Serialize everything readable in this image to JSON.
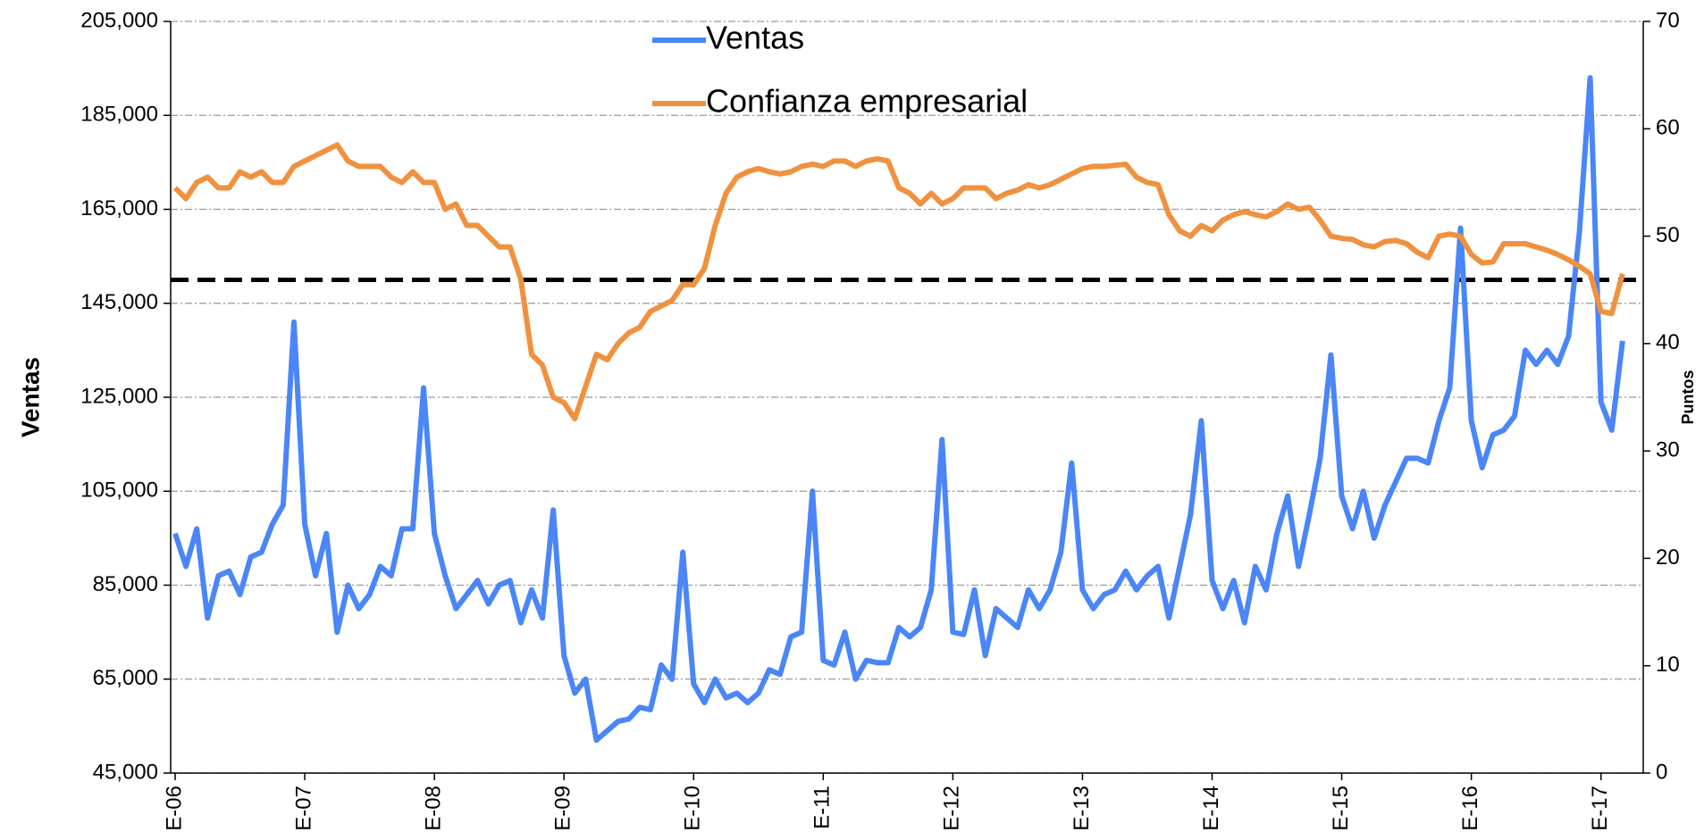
{
  "chart_data": {
    "type": "line",
    "y_label": "Ventas",
    "y2_label": "Puntos",
    "categories": [
      "E-06",
      null,
      null,
      null,
      null,
      null,
      null,
      null,
      null,
      null,
      null,
      null,
      "E-07",
      null,
      null,
      null,
      null,
      null,
      null,
      null,
      null,
      null,
      null,
      null,
      "E-08",
      null,
      null,
      null,
      null,
      null,
      null,
      null,
      null,
      null,
      null,
      null,
      "E-09",
      null,
      null,
      null,
      null,
      null,
      null,
      null,
      null,
      null,
      null,
      null,
      "E-10",
      null,
      null,
      null,
      null,
      null,
      null,
      null,
      null,
      null,
      null,
      null,
      "E-11",
      null,
      null,
      null,
      null,
      null,
      null,
      null,
      null,
      null,
      null,
      null,
      "E-12",
      null,
      null,
      null,
      null,
      null,
      null,
      null,
      null,
      null,
      null,
      null,
      "E-13",
      null,
      null,
      null,
      null,
      null,
      null,
      null,
      null,
      null,
      null,
      null,
      "E-14",
      null,
      null,
      null,
      null,
      null,
      null,
      null,
      null,
      null,
      null,
      null,
      "E-15",
      null,
      null,
      null,
      null,
      null,
      null,
      null,
      null,
      null,
      null,
      null,
      "E-16",
      null,
      null,
      null,
      null,
      null,
      null,
      null,
      null,
      null,
      null,
      null,
      "E-17",
      null,
      null
    ],
    "series": [
      {
        "name": "Ventas",
        "color": "#4a86f7",
        "axis": "y",
        "values": [
          96000,
          89000,
          97000,
          78000,
          87000,
          88000,
          83000,
          91000,
          92000,
          98000,
          102000,
          141000,
          98000,
          87000,
          96000,
          75000,
          85000,
          80000,
          83000,
          89000,
          87000,
          97000,
          97000,
          127000,
          96000,
          87000,
          80000,
          83000,
          86000,
          81000,
          85000,
          86000,
          77000,
          84000,
          78000,
          101000,
          70000,
          62000,
          65000,
          52000,
          54000,
          56000,
          56500,
          59000,
          58500,
          68000,
          65000,
          92000,
          64000,
          60000,
          65000,
          61000,
          62000,
          60000,
          62000,
          67000,
          66000,
          74000,
          75000,
          105000,
          69000,
          68000,
          75000,
          65000,
          69000,
          68500,
          68500,
          76000,
          74000,
          76000,
          84000,
          116000,
          75000,
          74500,
          84000,
          70000,
          80000,
          78000,
          76000,
          84000,
          80000,
          84000,
          92000,
          111000,
          84000,
          80000,
          83000,
          84000,
          88000,
          84000,
          87000,
          89000,
          78000,
          89000,
          100000,
          120000,
          86000,
          80000,
          86000,
          77000,
          89000,
          84000,
          96000,
          104000,
          89000,
          100000,
          112000,
          134000,
          104000,
          97000,
          105000,
          95000,
          102000,
          107000,
          112000,
          112000,
          111000,
          120000,
          127000,
          161000,
          120000,
          110000,
          117000,
          118000,
          121000,
          135000,
          132000,
          135000,
          132000,
          138000,
          160000,
          193000,
          124000,
          118000,
          137000
        ]
      },
      {
        "name": "Confianza empresarial",
        "color": "#f0913f",
        "axis": "y2",
        "values": [
          54.5,
          53.5,
          55,
          55.5,
          54.5,
          54.5,
          56,
          55.5,
          56,
          55,
          55,
          56.5,
          57,
          57.5,
          58,
          58.5,
          57,
          56.5,
          56.5,
          56.5,
          55.5,
          55,
          56,
          55,
          55,
          52.5,
          53,
          51,
          51,
          50,
          49,
          49,
          46,
          39,
          38,
          35,
          34.5,
          33,
          36,
          39,
          38.5,
          40,
          41,
          41.5,
          43,
          43.5,
          44,
          45.5,
          45.5,
          47,
          51,
          54,
          55.5,
          56,
          56.3,
          56,
          55.8,
          56,
          56.5,
          56.7,
          56.5,
          57,
          57,
          56.5,
          57,
          57.2,
          57,
          54.5,
          54,
          53,
          54,
          53,
          53.5,
          54.5,
          54.5,
          54.5,
          53.5,
          54,
          54.3,
          54.8,
          54.5,
          54.8,
          55.3,
          55.8,
          56.3,
          56.5,
          56.5,
          56.6,
          56.7,
          55.5,
          55,
          54.8,
          52,
          50.5,
          50,
          51,
          50.5,
          51.5,
          52,
          52.3,
          52,
          51.8,
          52.3,
          53,
          52.5,
          52.7,
          51.5,
          50,
          49.8,
          49.7,
          49.2,
          49,
          49.5,
          49.6,
          49.3,
          48.5,
          48,
          50,
          50.2,
          50,
          48.3,
          47.5,
          47.6,
          49.3,
          49.3,
          49.3,
          49,
          48.7,
          48.3,
          47.8,
          47.2,
          46.5,
          43,
          42.8,
          46.5
        ]
      }
    ],
    "reference_line": {
      "value": 150000,
      "axis": "y",
      "color": "#000000"
    },
    "ylim": [
      45000,
      205000
    ],
    "yticks": [
      {
        "value": 45000,
        "label": "45,000"
      },
      {
        "value": 65000,
        "label": "65,000"
      },
      {
        "value": 85000,
        "label": "85,000"
      },
      {
        "value": 105000,
        "label": "105,000"
      },
      {
        "value": 125000,
        "label": "125,000"
      },
      {
        "value": 145000,
        "label": "145,000"
      },
      {
        "value": 165000,
        "label": "165,000"
      },
      {
        "value": 185000,
        "label": "185,000"
      },
      {
        "value": 205000,
        "label": "205,000"
      }
    ],
    "y2lim": [
      0,
      70
    ],
    "y2ticks": [
      0,
      10,
      20,
      30,
      40,
      50,
      60,
      70
    ],
    "grid": true
  }
}
